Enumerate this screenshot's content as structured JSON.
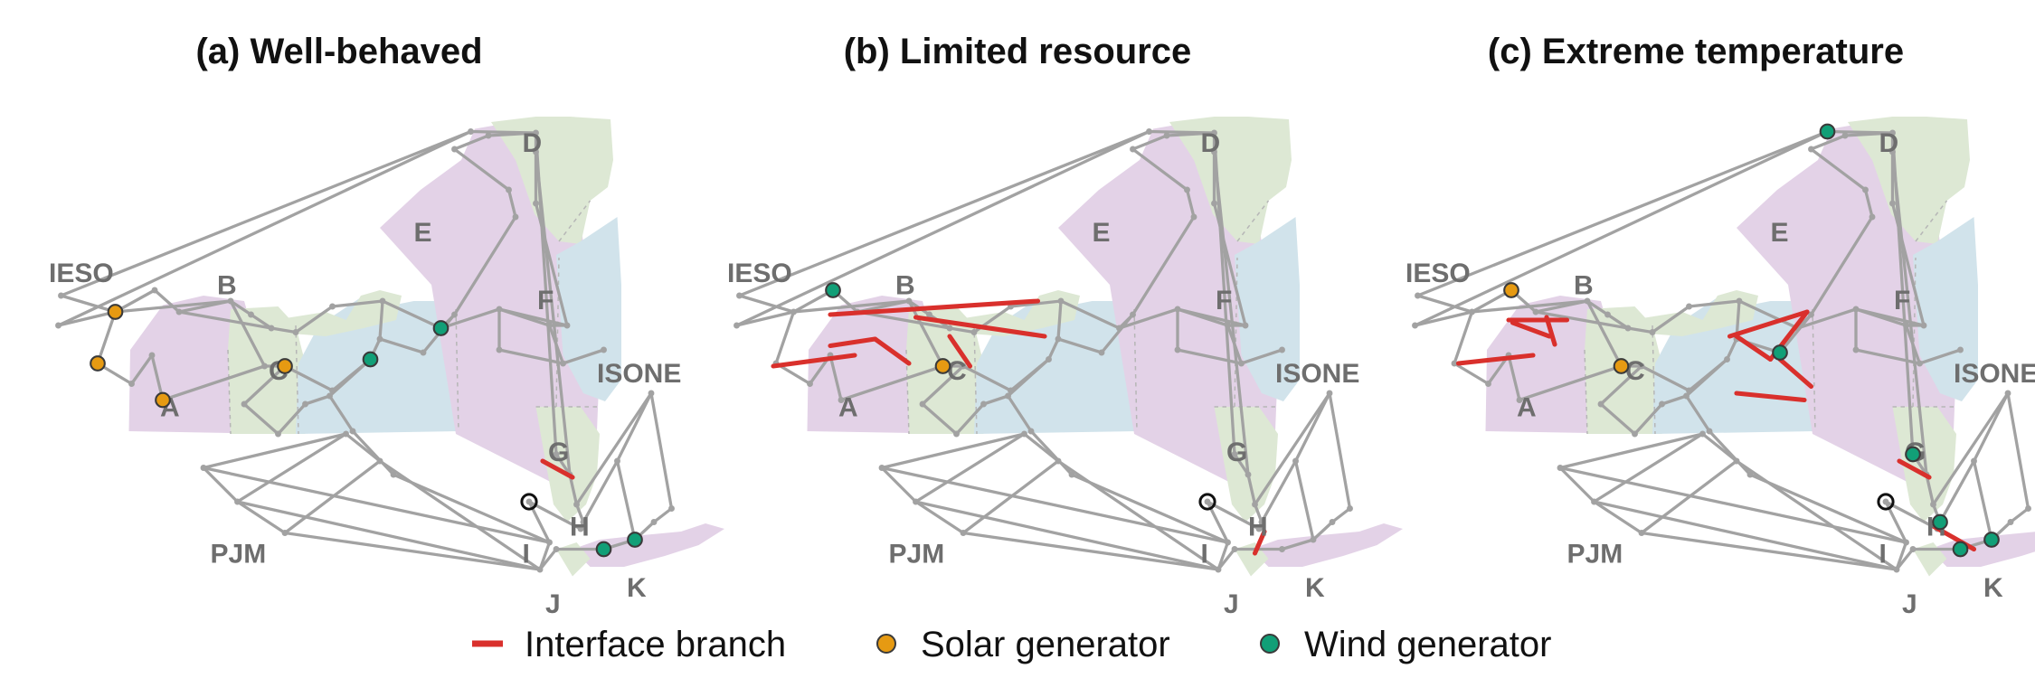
{
  "figure": {
    "panels": [
      {
        "title": "(a) Well-behaved",
        "highlights": {
          "interface_branches": 1,
          "solar_generators": 4,
          "wind_generators": 4,
          "ring_nodes": 1
        }
      },
      {
        "title": "(b) Limited resource",
        "highlights": {
          "interface_branches": 7,
          "solar_generators": 1,
          "wind_generators": 1,
          "ring_nodes": 1
        }
      },
      {
        "title": "(c) Extreme temperature",
        "highlights": {
          "interface_branches": 11,
          "solar_generators": 2,
          "wind_generators": 6,
          "ring_nodes": 1
        }
      }
    ],
    "zone_labels": [
      "A",
      "B",
      "C",
      "D",
      "E",
      "F",
      "G",
      "H",
      "I",
      "J",
      "K"
    ],
    "external_labels": [
      "IESO",
      "ISONE",
      "PJM"
    ],
    "legend": {
      "interface": "Interface branch",
      "solar": "Solar generator",
      "wind": "Wind generator"
    },
    "colors": {
      "interface_branch": "#d9302c",
      "solar_generator": "#e69a12",
      "wind_generator": "#119f77",
      "network_line": "#a2a2a2",
      "zone_pink": "#e3d2e7",
      "zone_green": "#dde8d4",
      "zone_blue": "#d1e3eb",
      "label": "#6e6e6e"
    }
  }
}
